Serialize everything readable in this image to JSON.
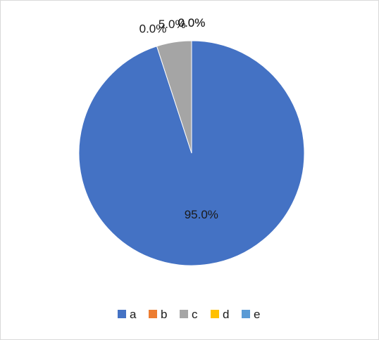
{
  "chart_data": {
    "type": "pie",
    "title": "",
    "legend_position": "bottom",
    "slices": [
      {
        "label": "a",
        "value": 0.95,
        "display": "95.0%",
        "color": "#4472C4"
      },
      {
        "label": "b",
        "value": 0.0,
        "display": "0.0%",
        "color": "#ED7D31"
      },
      {
        "label": "c",
        "value": 0.05,
        "display": "5.0%",
        "color": "#A5A5A5"
      },
      {
        "label": "d",
        "value": 0.0,
        "display": "0.0%",
        "color": "#FFC000"
      },
      {
        "label": "e",
        "value": 0.0,
        "display": "0.0%",
        "color": "#5B9BD5"
      }
    ]
  }
}
